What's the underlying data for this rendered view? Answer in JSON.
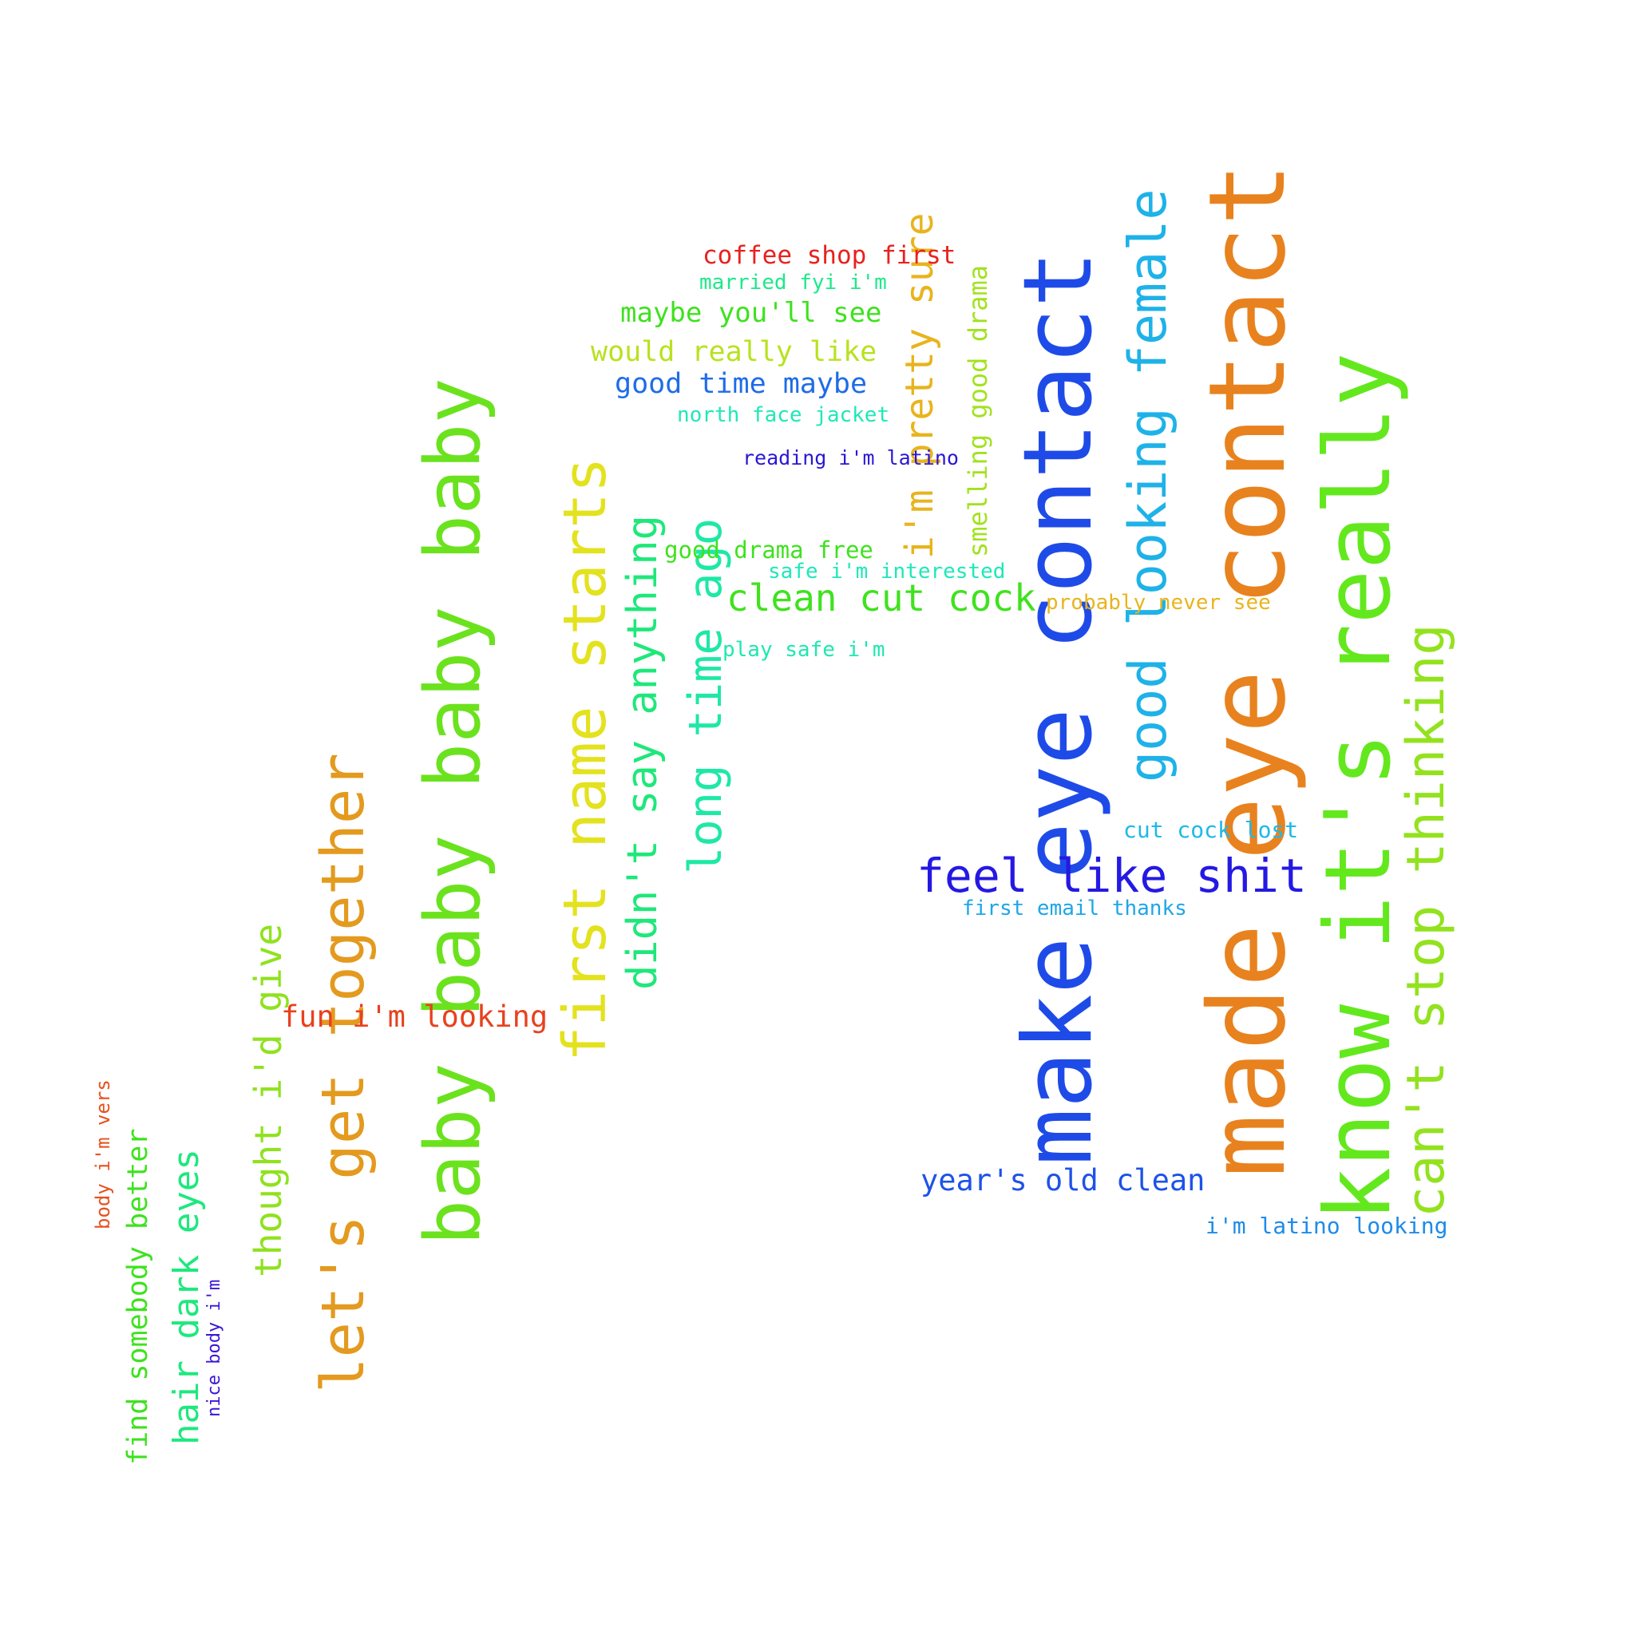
{
  "words": [
    {
      "text": "made eye contact",
      "color": "#e8821e"
    },
    {
      "text": "make eye contact",
      "color": "#1e4be8"
    },
    {
      "text": "know it's really",
      "color": "#63e81e"
    },
    {
      "text": "baby baby baby baby",
      "color": "#6be21e"
    },
    {
      "text": "first name starts",
      "color": "#e3e21e"
    },
    {
      "text": "let's get together",
      "color": "#e39a1e"
    },
    {
      "text": "can't stop thinking",
      "color": "#93e21e"
    },
    {
      "text": "good looking female",
      "color": "#1eb2e8"
    },
    {
      "text": "long time ago",
      "color": "#1ee8a6"
    },
    {
      "text": "didn't say anything",
      "color": "#1ee87a"
    },
    {
      "text": "i'm pretty sure",
      "color": "#e8b41e"
    },
    {
      "text": "thought i'd give",
      "color": "#8fe21e"
    },
    {
      "text": "feel like shit",
      "color": "#2419e3"
    },
    {
      "text": "hair dark eyes",
      "color": "#1ee87e"
    },
    {
      "text": "clean cut cock",
      "color": "#3fe21e"
    },
    {
      "text": "find somebody better",
      "color": "#3ee21e"
    },
    {
      "text": "smelling good drama",
      "color": "#a2e21e"
    },
    {
      "text": "fun i'm looking",
      "color": "#e8411e"
    },
    {
      "text": "year's old clean",
      "color": "#1e52e8"
    },
    {
      "text": "maybe you'll see",
      "color": "#3ee21e"
    },
    {
      "text": "would really like",
      "color": "#b8e21e"
    },
    {
      "text": "good time maybe",
      "color": "#1e6ce8"
    },
    {
      "text": "coffee shop first",
      "color": "#e8211e"
    },
    {
      "text": "cut cock lost",
      "color": "#1eb9e8"
    },
    {
      "text": "i'm latino looking",
      "color": "#1e8be8"
    },
    {
      "text": "good drama free",
      "color": "#3ee21e"
    },
    {
      "text": "first email thanks",
      "color": "#1ea6e8"
    },
    {
      "text": "married fyi i'm",
      "color": "#1ee88b"
    },
    {
      "text": "north face jacket",
      "color": "#1ee8b8"
    },
    {
      "text": "safe i'm interested",
      "color": "#1ee8b8"
    },
    {
      "text": "probably never see",
      "color": "#e8b41e"
    },
    {
      "text": "play safe i'm",
      "color": "#1ee8b0"
    },
    {
      "text": "reading i'm latino",
      "color": "#2a16d6"
    },
    {
      "text": "body i'm vers",
      "color": "#e8501e"
    },
    {
      "text": "nice body i'm",
      "color": "#3a16d6"
    }
  ]
}
